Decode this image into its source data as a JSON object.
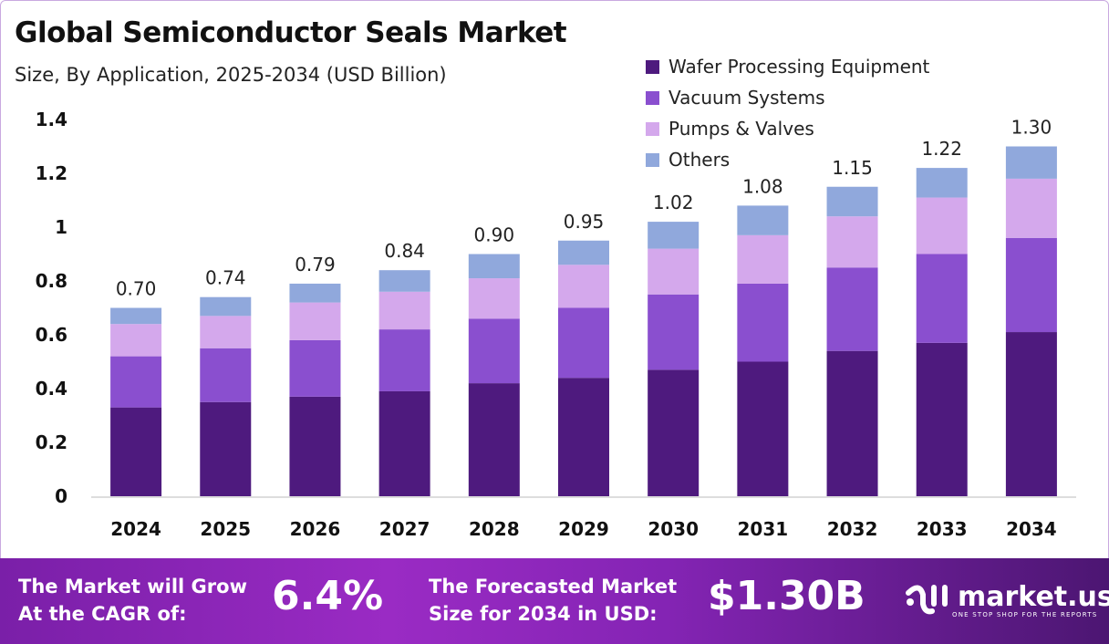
{
  "chart_data": {
    "type": "bar",
    "stacked": true,
    "title": "Global Semiconductor Seals Market",
    "subtitle": "Size, By Application, 2025-2034 (USD Billion)",
    "categories": [
      "2024",
      "2025",
      "2026",
      "2027",
      "2028",
      "2029",
      "2030",
      "2031",
      "2032",
      "2033",
      "2034"
    ],
    "series": [
      {
        "name": "Wafer Processing Equipment",
        "color": "#4e1a7e",
        "values": [
          0.33,
          0.35,
          0.37,
          0.39,
          0.42,
          0.44,
          0.47,
          0.5,
          0.54,
          0.57,
          0.61
        ]
      },
      {
        "name": "Vacuum Systems",
        "color": "#8a4fcf",
        "values": [
          0.19,
          0.2,
          0.21,
          0.23,
          0.24,
          0.26,
          0.28,
          0.29,
          0.31,
          0.33,
          0.35
        ]
      },
      {
        "name": "Pumps & Valves",
        "color": "#d4a8ec",
        "values": [
          0.12,
          0.12,
          0.14,
          0.14,
          0.15,
          0.16,
          0.17,
          0.18,
          0.19,
          0.21,
          0.22
        ]
      },
      {
        "name": "Others",
        "color": "#90a8dc",
        "values": [
          0.06,
          0.07,
          0.07,
          0.08,
          0.09,
          0.09,
          0.1,
          0.11,
          0.11,
          0.11,
          0.12
        ]
      }
    ],
    "totals": [
      "0.70",
      "0.74",
      "0.79",
      "0.84",
      "0.90",
      "0.95",
      "1.02",
      "1.08",
      "1.15",
      "1.22",
      "1.30"
    ],
    "yticks": [
      "0",
      "0.2",
      "0.4",
      "0.6",
      "0.8",
      "1",
      "1.2",
      "1.4"
    ],
    "ylim": [
      0,
      1.4
    ],
    "grid": false,
    "legend": "top-right"
  },
  "footer": {
    "cagr_label_1": "The Market will Grow",
    "cagr_label_2": "At the CAGR of:",
    "cagr_value": "6.4%",
    "forecast_label_1": "The Forecasted Market",
    "forecast_label_2": "Size for 2034 in USD:",
    "forecast_value": "$1.30B",
    "logo_name": "market.us",
    "logo_tagline": "ONE STOP SHOP FOR THE REPORTS"
  }
}
